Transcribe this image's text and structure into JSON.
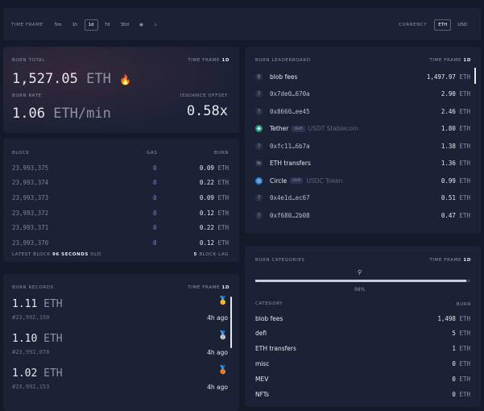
{
  "topbar": {
    "timeframe_label": "TIME FRAME",
    "timeframes": [
      "5m",
      "1h",
      "1d",
      "7d",
      "30d"
    ],
    "selected_timeframe": "1d",
    "currency_label": "CURRENCY",
    "currencies": [
      "ETH",
      "USD"
    ],
    "selected_currency": "ETH"
  },
  "burn_total": {
    "label": "BURN TOTAL",
    "timeframe_label": "TIME FRAME",
    "timeframe": "1d",
    "value": "1,527.05",
    "unit": "ETH",
    "emoji": "🔥",
    "rate_label": "BURN RATE",
    "rate": "1.06",
    "rate_unit": "ETH/min",
    "offset_label": "ISSUANCE OFFSET",
    "offset": "0.58x"
  },
  "blocks": {
    "headers": [
      "BLOCK",
      "GAS",
      "BURN"
    ],
    "rows": [
      {
        "block": "23,993,375",
        "gas": "0",
        "burn": "0.09"
      },
      {
        "block": "23,993,374",
        "gas": "0",
        "burn": "0.22"
      },
      {
        "block": "23,993,373",
        "gas": "0",
        "burn": "0.09"
      },
      {
        "block": "23,993,372",
        "gas": "0",
        "burn": "0.12"
      },
      {
        "block": "23,993,371",
        "gas": "0",
        "burn": "0.22"
      },
      {
        "block": "23,993,370",
        "gas": "0",
        "burn": "0.12"
      }
    ],
    "unit": "ETH",
    "footer_prefix": "LATEST BLOCK",
    "footer_seconds": "96",
    "footer_seconds_label": "SECONDS",
    "footer_suffix": "OLD",
    "lag_value": "5",
    "lag_label": "BLOCK LAG"
  },
  "records": {
    "label": "BURN RECORDS",
    "timeframe_label": "TIME FRAME",
    "timeframe": "1d",
    "unit": "ETH",
    "items": [
      {
        "value": "1.11",
        "block": "#23,992,150",
        "age": "4h ago",
        "medal": "🥇"
      },
      {
        "value": "1.10",
        "block": "#23,992,078",
        "age": "4h ago",
        "medal": "🥈"
      },
      {
        "value": "1.02",
        "block": "#23,992,153",
        "age": "4h ago",
        "medal": "🥉"
      }
    ]
  },
  "leaderboard": {
    "label": "BURN LEADERBOARD",
    "timeframe_label": "TIME FRAME",
    "timeframe": "1d",
    "unit": "ETH",
    "items": [
      {
        "name": "blob fees",
        "value": "1,497.97",
        "icon": "blob-icon"
      },
      {
        "name": "0x7de0…670a",
        "value": "2.90",
        "icon": "question-icon"
      },
      {
        "name": "0x8660…ee45",
        "value": "2.46",
        "icon": "question-icon"
      },
      {
        "name": "Tether",
        "tag": "defi",
        "desc": "USDT Stablecoin",
        "value": "1.80",
        "icon": "tether-icon"
      },
      {
        "name": "0xfc11…6b7a",
        "value": "1.38",
        "icon": "question-icon"
      },
      {
        "name": "ETH transfers",
        "value": "1.36",
        "icon": "transfer-icon"
      },
      {
        "name": "Circle",
        "tag": "defi",
        "desc": "USDC Token",
        "value": "0.99",
        "icon": "circle-icon"
      },
      {
        "name": "0x4e1d…ec67",
        "value": "0.51",
        "icon": "question-icon"
      },
      {
        "name": "0xf680…2b08",
        "value": "0.47",
        "icon": "question-icon"
      }
    ]
  },
  "categories": {
    "label": "BURN CATEGORIES",
    "timeframe_label": "TIME FRAME",
    "timeframe": "1d",
    "bar_percent": "98%",
    "bar_fraction": 0.98,
    "col_category": "CATEGORY",
    "col_burn": "BURN",
    "unit": "ETH",
    "items": [
      {
        "name": "blob fees",
        "value": "1,498"
      },
      {
        "name": "defi",
        "value": "5"
      },
      {
        "name": "ETH transfers",
        "value": "1"
      },
      {
        "name": "misc",
        "value": "0"
      },
      {
        "name": "MEV",
        "value": "0"
      },
      {
        "name": "NFTs",
        "value": "0"
      }
    ]
  }
}
